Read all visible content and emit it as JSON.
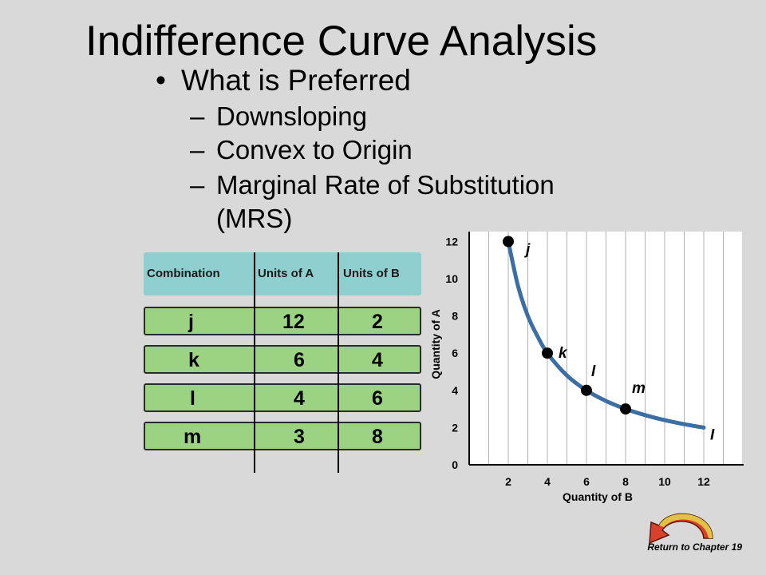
{
  "slide": {
    "title": "Indifference Curve Analysis",
    "bullet_dot": "•",
    "bullet": "What is Preferred",
    "sub_dash": "–",
    "subs": [
      "Downsloping",
      "Convex to Origin",
      "Marginal Rate of Substitution",
      "(MRS)"
    ]
  },
  "table": {
    "headers": [
      "Combination",
      "Units of A",
      "Units of B"
    ],
    "rows": [
      {
        "combination": "j",
        "units_a": "12",
        "units_b": "2"
      },
      {
        "combination": "k",
        "units_a": "6",
        "units_b": "4"
      },
      {
        "combination": "l",
        "units_a": "4",
        "units_b": "6"
      },
      {
        "combination": "m",
        "units_a": "3",
        "units_b": "8"
      }
    ]
  },
  "chart_data": {
    "type": "line",
    "xlabel": "Quantity of B",
    "ylabel": "Quantity of A",
    "xlim": [
      0,
      12.8
    ],
    "ylim": [
      0,
      12.4
    ],
    "x_ticks": [
      "2",
      "4",
      "6",
      "8",
      "10",
      "12"
    ],
    "y_ticks": [
      "0",
      "2",
      "4",
      "6",
      "8",
      "10",
      "12"
    ],
    "grid": "vertical",
    "series": [
      {
        "name": "I",
        "points": [
          {
            "x": 2,
            "y": 12
          },
          {
            "x": 2.5,
            "y": 9.6
          },
          {
            "x": 3,
            "y": 8
          },
          {
            "x": 3.5,
            "y": 6.9
          },
          {
            "x": 4,
            "y": 6
          },
          {
            "x": 5,
            "y": 4.8
          },
          {
            "x": 6,
            "y": 4
          },
          {
            "x": 7,
            "y": 3.43
          },
          {
            "x": 8,
            "y": 3
          },
          {
            "x": 9,
            "y": 2.67
          },
          {
            "x": 10,
            "y": 2.4
          },
          {
            "x": 11,
            "y": 2.18
          },
          {
            "x": 12,
            "y": 2
          }
        ]
      }
    ],
    "marked_points": [
      {
        "label": "j",
        "x": 2,
        "y": 12
      },
      {
        "label": "k",
        "x": 4,
        "y": 6
      },
      {
        "label": "l",
        "x": 6,
        "y": 4
      },
      {
        "label": "m",
        "x": 8,
        "y": 3
      }
    ],
    "curve_label": "I",
    "colors": {
      "curve": "#3a6ea5",
      "plot_bg": "#ffffff",
      "grid": "#b0b0b0"
    }
  },
  "footer": {
    "return_text": "Return to Chapter 19"
  },
  "colors": {
    "header_bg": "#90cfd0",
    "row_bg": "#9cd383",
    "arrow_red": "#d9412b",
    "arrow_yellow": "#e3d84a"
  }
}
